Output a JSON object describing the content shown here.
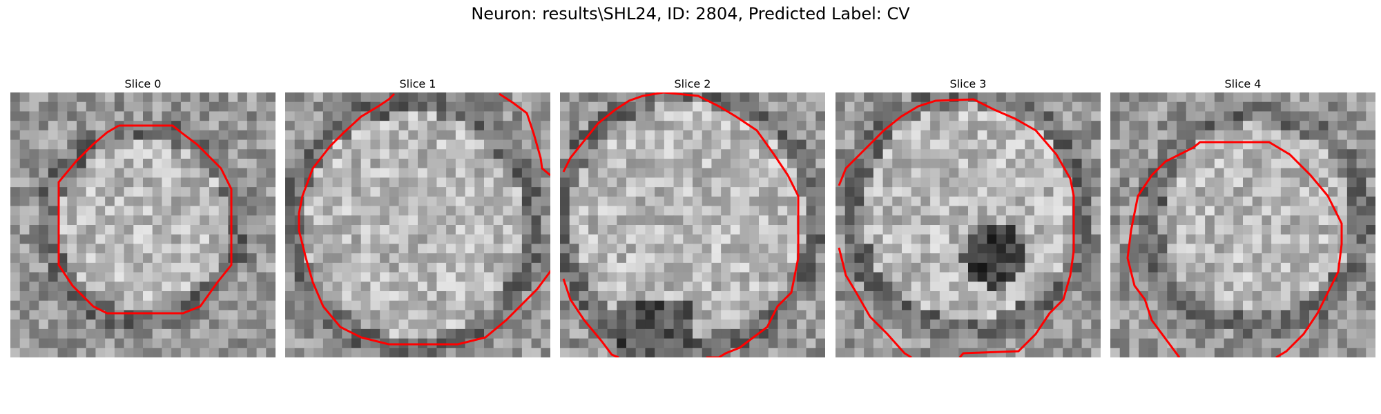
{
  "figure": {
    "title": "Neuron: results\\SHL24, ID: 2804, Predicted Label: CV"
  },
  "panels": [
    {
      "title": "Slice 0",
      "overlay": "closed-octagon"
    },
    {
      "title": "Slice 1",
      "overlay": "open-contour"
    },
    {
      "title": "Slice 2",
      "overlay": "open-contour"
    },
    {
      "title": "Slice 3",
      "overlay": "open-contour"
    },
    {
      "title": "Slice 4",
      "overlay": "open-contour"
    }
  ],
  "colors": {
    "contour": "#ff0000",
    "background": "#ffffff"
  }
}
